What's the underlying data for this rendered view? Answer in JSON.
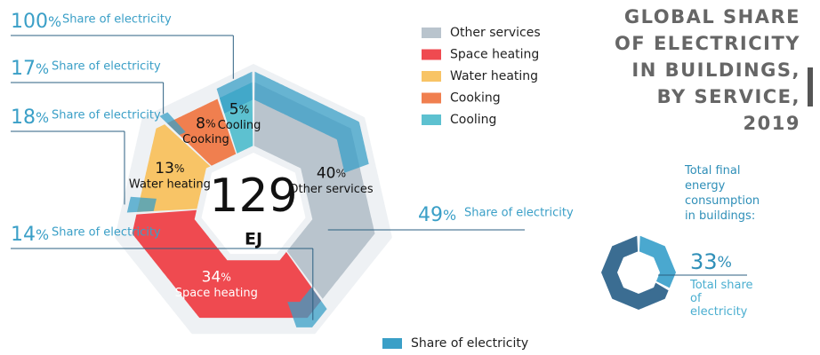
{
  "chart_data": {
    "type": "donut",
    "title": "GLOBAL SHARE OF ELECTRICITY IN BUILDINGS, BY SERVICE, 2019",
    "center_value": 129,
    "center_unit": "EJ",
    "unit": "%",
    "categories": [
      "Other services",
      "Space heating",
      "Water heating",
      "Cooking",
      "Cooling"
    ],
    "values": [
      40,
      34,
      13,
      8,
      5
    ],
    "colors": [
      "#b9c4cd",
      "#ef4a50",
      "#f8c466",
      "#f07f4f",
      "#5dc1d0"
    ],
    "electricity": {
      "name": "Share of electricity",
      "color": "#3a9fc7",
      "values": [
        49,
        14,
        18,
        17,
        100
      ]
    },
    "summary": {
      "label": "Total final energy consumption in buildings:",
      "value": 33,
      "sublabel": "Total share of electricity",
      "colors": [
        "#4aa8cf",
        "#3b6d92"
      ]
    }
  }
}
